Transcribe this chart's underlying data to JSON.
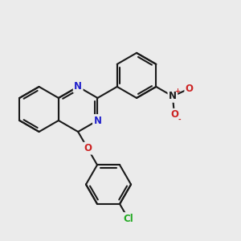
{
  "background_color": "#ebebeb",
  "bond_color": "#1a1a1a",
  "bond_width": 1.5,
  "atom_colors": {
    "N": "#2222cc",
    "O": "#cc2222",
    "Cl": "#22aa22",
    "C": "#1a1a1a"
  },
  "font_size_atom": 8.5,
  "font_size_charge": 6.0,
  "xlim": [
    -1.0,
    9.5
  ],
  "ylim": [
    -4.5,
    5.5
  ]
}
